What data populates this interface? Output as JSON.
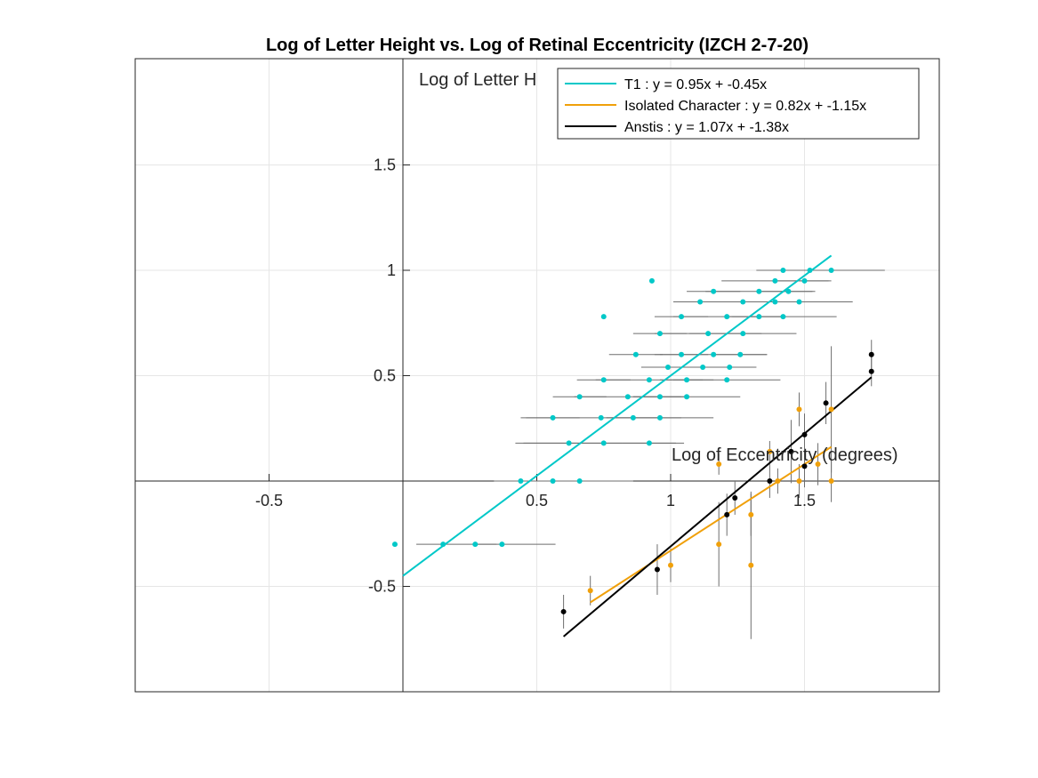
{
  "chart_data": {
    "type": "scatter",
    "title": "Log of Letter Height vs. Log of Retinal Eccentricity (IZCH 2-7-20)",
    "xlabel": "Log of Eccentricity (degrees)",
    "ylabel": "Log of Letter H",
    "xlim": [
      -1,
      2
    ],
    "ylim": [
      -1,
      2
    ],
    "xticks": [
      -0.5,
      0.5,
      1,
      1.5
    ],
    "xtick_labels": [
      "-0.5",
      "0.5",
      "1",
      "1.5"
    ],
    "yticks": [
      -0.5,
      0.5,
      1,
      1.5
    ],
    "ytick_labels": [
      "-0.5",
      "0.5",
      "1",
      "1.5"
    ],
    "grid": true,
    "legend_position": "top-right",
    "series": [
      {
        "name": "T1 : y = 0.95x + -0.45x",
        "color": "#00C8C8",
        "fit": {
          "slope": 0.95,
          "intercept": -0.45,
          "x_range": [
            0,
            1.6
          ]
        },
        "points": [
          [
            -0.03,
            -0.3,
            0,
            0
          ],
          [
            0.15,
            -0.3,
            0.1,
            0.2
          ],
          [
            0.27,
            -0.3,
            0,
            0
          ],
          [
            0.37,
            -0.3,
            0.1,
            0.2
          ],
          [
            0.44,
            0,
            0.1,
            0.1
          ],
          [
            0.56,
            0,
            0,
            0
          ],
          [
            0.66,
            0,
            0.2,
            0.2
          ],
          [
            0.62,
            0.18,
            0.2,
            0.2
          ],
          [
            0.75,
            0.18,
            0.3,
            0.3
          ],
          [
            0.92,
            0.18,
            0.1,
            0.1
          ],
          [
            0.56,
            0.3,
            0.1,
            0.1
          ],
          [
            0.74,
            0.3,
            0.3,
            0.3
          ],
          [
            0.86,
            0.3,
            0.1,
            0.1
          ],
          [
            0.96,
            0.3,
            0.2,
            0.2
          ],
          [
            0.66,
            0.4,
            0.1,
            0.1
          ],
          [
            0.84,
            0.4,
            0.2,
            0.2
          ],
          [
            0.96,
            0.4,
            0.1,
            0.1
          ],
          [
            1.06,
            0.4,
            0.2,
            0.2
          ],
          [
            0.75,
            0.48,
            0.1,
            0.1
          ],
          [
            0.92,
            0.48,
            0.2,
            0.2
          ],
          [
            1.06,
            0.48,
            0.1,
            0.1
          ],
          [
            1.21,
            0.48,
            0.2,
            0.2
          ],
          [
            0.87,
            0.6,
            0.1,
            0.1
          ],
          [
            0.99,
            0.54,
            0.1,
            0.1
          ],
          [
            1.12,
            0.54,
            0.2,
            0.2
          ],
          [
            1.22,
            0.54,
            0.1,
            0.1
          ],
          [
            1.04,
            0.6,
            0.1,
            0.1
          ],
          [
            1.16,
            0.6,
            0.2,
            0.2
          ],
          [
            1.26,
            0.6,
            0.1,
            0.1
          ],
          [
            0.96,
            0.7,
            0.1,
            0.1
          ],
          [
            1.14,
            0.7,
            0.2,
            0.2
          ],
          [
            1.27,
            0.7,
            0.2,
            0.2
          ],
          [
            1.04,
            0.78,
            0.1,
            0.1
          ],
          [
            1.21,
            0.78,
            0.2,
            0.2
          ],
          [
            1.33,
            0.78,
            0.1,
            0.1
          ],
          [
            1.42,
            0.78,
            0.2,
            0.2
          ],
          [
            1.11,
            0.85,
            0.1,
            0.1
          ],
          [
            1.27,
            0.85,
            0.2,
            0.2
          ],
          [
            1.39,
            0.85,
            0.1,
            0.1
          ],
          [
            1.48,
            0.85,
            0.2,
            0.2
          ],
          [
            1.16,
            0.9,
            0.1,
            0.1
          ],
          [
            1.33,
            0.9,
            0.2,
            0.2
          ],
          [
            1.44,
            0.9,
            0.1,
            0.1
          ],
          [
            1.39,
            0.95,
            0.2,
            0.2
          ],
          [
            1.5,
            0.95,
            0.1,
            0.1
          ],
          [
            1.42,
            1,
            0.1,
            0.1
          ],
          [
            1.52,
            1,
            0.1,
            0.1
          ],
          [
            1.6,
            1,
            0.2,
            0.2
          ],
          [
            0.75,
            0.78,
            0,
            0
          ],
          [
            0.93,
            0.95,
            0,
            0
          ]
        ]
      },
      {
        "name": "Isolated Character : y = 0.82x + -1.15x",
        "color": "#F0A00A",
        "fit": {
          "slope": 0.82,
          "intercept": -1.15,
          "x_range": [
            0.7,
            1.6
          ]
        },
        "points": [
          [
            0.7,
            -0.52,
            0.07,
            0.07
          ],
          [
            1.0,
            -0.4,
            0.08,
            0.08
          ],
          [
            1.18,
            -0.3,
            0.2,
            0.2
          ],
          [
            1.18,
            0.08,
            0.05,
            0.05
          ],
          [
            1.3,
            -0.16,
            0.1,
            0.1
          ],
          [
            1.3,
            -0.4,
            0.35,
            0.35
          ],
          [
            1.37,
            0.14,
            0.05,
            0.05
          ],
          [
            1.4,
            0,
            0.06,
            0.06
          ],
          [
            1.48,
            0.34,
            0.08,
            0.08
          ],
          [
            1.48,
            0,
            0.08,
            0.08
          ],
          [
            1.55,
            0.08,
            0.1,
            0.1
          ],
          [
            1.6,
            0,
            0.1,
            0.1
          ],
          [
            1.6,
            0.34,
            0.3,
            0.3
          ]
        ]
      },
      {
        "name": "Anstis : y = 1.07x + -1.38x",
        "color": "#000000",
        "fit": {
          "slope": 1.07,
          "intercept": -1.38,
          "x_range": [
            0.6,
            1.75
          ]
        },
        "points": [
          [
            0.6,
            -0.62,
            0.08,
            0.08
          ],
          [
            0.95,
            -0.42,
            0.12,
            0.12
          ],
          [
            1.21,
            -0.16,
            0.1,
            0.1
          ],
          [
            1.24,
            -0.08,
            0.08,
            0.08
          ],
          [
            1.37,
            0,
            0.08,
            0.08
          ],
          [
            1.45,
            0.14,
            0.15,
            0.15
          ],
          [
            1.5,
            0.07,
            0.1,
            0.1
          ],
          [
            1.5,
            0.22,
            0.1,
            0.1
          ],
          [
            1.58,
            0.37,
            0.1,
            0.1
          ],
          [
            1.75,
            0.6,
            0.07,
            0.07
          ],
          [
            1.75,
            0.52,
            0.07,
            0.07
          ]
        ]
      }
    ],
    "errorbar_color": "#6E6E6E"
  }
}
